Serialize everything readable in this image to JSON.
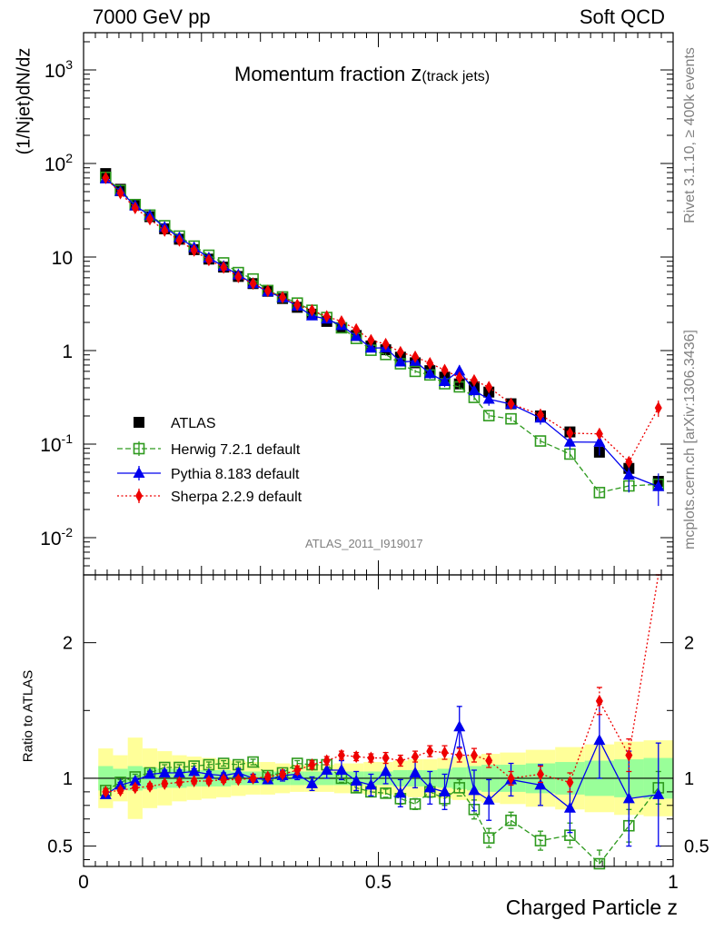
{
  "header": {
    "left": "7000 GeV pp",
    "right": "Soft QCD"
  },
  "side_labels": {
    "upper": "Rivet 3.1.10, ≥ 400k events",
    "lower": "mcplots.cern.ch [arXiv:1306.3436]"
  },
  "colors": {
    "atlas": "#000000",
    "herwig": "#2e9a1e",
    "pythia": "#0000ee",
    "sherpa": "#ee0000",
    "band_outer": "#ffff99",
    "band_inner": "#99ff99"
  },
  "chart_data": {
    "type": "line",
    "title": "Momentum fraction",
    "title_suffix": "z",
    "title_sub": "(track jets)",
    "xlabel": "Charged Particle z",
    "ylabel": "(1/Njet)dN/dz",
    "ratio_ylabel": "Ratio to ATLAS",
    "analysis_tag": "ATLAS_2011_I919017",
    "xlim": [
      0,
      1
    ],
    "ylim_log": [
      0.004,
      2500
    ],
    "ratio_ylim": [
      0.35,
      2.5
    ],
    "x_ticks": [
      "0",
      "0.5",
      "1"
    ],
    "y_ticks": [
      "10^-2",
      "10^-1",
      "1",
      "10",
      "10^2",
      "10^3"
    ],
    "ratio_ticks": [
      "0.5",
      "1",
      "2"
    ],
    "x": [
      0.0375,
      0.0625,
      0.0875,
      0.1125,
      0.1375,
      0.1625,
      0.1875,
      0.2125,
      0.2375,
      0.2625,
      0.2875,
      0.3125,
      0.3375,
      0.3625,
      0.3875,
      0.4125,
      0.4375,
      0.4625,
      0.4875,
      0.5125,
      0.5375,
      0.5625,
      0.5875,
      0.6125,
      0.6375,
      0.6625,
      0.6875,
      0.725,
      0.775,
      0.825,
      0.875,
      0.925,
      0.975
    ],
    "series": [
      {
        "name": "ATLAS",
        "style": "data",
        "values": [
          78,
          53,
          36,
          27,
          20,
          15.5,
          12,
          9.5,
          7.8,
          6.2,
          5.2,
          4.3,
          3.6,
          2.9,
          2.45,
          2.05,
          1.75,
          1.45,
          1.12,
          1.02,
          0.85,
          0.74,
          0.61,
          0.52,
          0.44,
          0.41,
          0.36,
          0.27,
          0.2,
          0.135,
          0.082,
          0.055,
          0.04
        ],
        "band_outer": [
          0.22,
          0.17,
          0.3,
          0.22,
          0.2,
          0.17,
          0.16,
          0.15,
          0.14,
          0.13,
          0.12,
          0.12,
          0.11,
          0.1,
          0.1,
          0.1,
          0.11,
          0.11,
          0.12,
          0.12,
          0.13,
          0.14,
          0.14,
          0.15,
          0.16,
          0.17,
          0.18,
          0.19,
          0.21,
          0.23,
          0.25,
          0.27,
          0.28
        ],
        "band_inner": [
          0.09,
          0.07,
          0.09,
          0.08,
          0.07,
          0.07,
          0.06,
          0.06,
          0.06,
          0.05,
          0.05,
          0.05,
          0.05,
          0.05,
          0.05,
          0.05,
          0.05,
          0.05,
          0.05,
          0.05,
          0.06,
          0.06,
          0.06,
          0.07,
          0.08,
          0.09,
          0.1,
          0.1,
          0.11,
          0.12,
          0.13,
          0.14,
          0.15
        ]
      },
      {
        "name": "Herwig 7.2.1 default",
        "style": "open-square-dashed",
        "ratio": [
          0.91,
          0.97,
          1.01,
          1.04,
          1.08,
          1.08,
          1.09,
          1.1,
          1.11,
          1.1,
          1.12,
          1.02,
          1.04,
          1.11,
          1.1,
          1.1,
          1.0,
          0.93,
          0.9,
          0.89,
          0.85,
          0.81,
          0.9,
          0.85,
          0.93,
          0.77,
          0.56,
          0.69,
          0.54,
          0.58,
          0.37,
          0.65,
          0.93
        ],
        "ratio_err": [
          0.02,
          0.02,
          0.02,
          0.02,
          0.02,
          0.02,
          0.02,
          0.02,
          0.02,
          0.02,
          0.02,
          0.02,
          0.02,
          0.02,
          0.02,
          0.03,
          0.03,
          0.03,
          0.03,
          0.03,
          0.04,
          0.04,
          0.04,
          0.05,
          0.06,
          0.07,
          0.07,
          0.06,
          0.07,
          0.09,
          0.1,
          0.12,
          0.12
        ]
      },
      {
        "name": "Pythia 8.183 default",
        "style": "triangle-solid",
        "ratio": [
          0.88,
          0.95,
          0.98,
          1.03,
          1.04,
          1.04,
          1.05,
          1.03,
          1.02,
          1.04,
          1.0,
          0.99,
          1.02,
          1.03,
          0.96,
          1.06,
          1.06,
          0.98,
          0.95,
          1.05,
          0.89,
          1.04,
          0.93,
          0.9,
          1.38,
          0.91,
          0.84,
          0.99,
          0.95,
          0.78,
          1.28,
          0.85,
          0.88
        ],
        "ratio_err": [
          0.02,
          0.02,
          0.02,
          0.02,
          0.02,
          0.02,
          0.02,
          0.02,
          0.02,
          0.03,
          0.03,
          0.03,
          0.04,
          0.04,
          0.05,
          0.06,
          0.07,
          0.07,
          0.08,
          0.09,
          0.1,
          0.11,
          0.12,
          0.13,
          0.15,
          0.15,
          0.15,
          0.12,
          0.15,
          0.18,
          0.28,
          0.35,
          0.38
        ]
      },
      {
        "name": "Sherpa 2.2.9 default",
        "style": "diamond-dotted",
        "ratio": [
          0.9,
          0.91,
          0.93,
          0.94,
          0.96,
          0.97,
          0.98,
          0.98,
          0.99,
          0.99,
          1.0,
          1.01,
          1.03,
          1.06,
          1.1,
          1.13,
          1.17,
          1.16,
          1.15,
          1.15,
          1.13,
          1.16,
          1.2,
          1.19,
          1.17,
          1.17,
          1.13,
          1.0,
          1.03,
          0.97,
          1.57,
          1.17,
          6.1
        ],
        "ratio_err": [
          0.02,
          0.02,
          0.02,
          0.02,
          0.02,
          0.02,
          0.02,
          0.02,
          0.02,
          0.02,
          0.02,
          0.02,
          0.02,
          0.03,
          0.03,
          0.03,
          0.03,
          0.03,
          0.03,
          0.04,
          0.04,
          0.04,
          0.04,
          0.05,
          0.05,
          0.05,
          0.05,
          0.05,
          0.06,
          0.07,
          0.1,
          0.12,
          0.2
        ]
      }
    ]
  }
}
